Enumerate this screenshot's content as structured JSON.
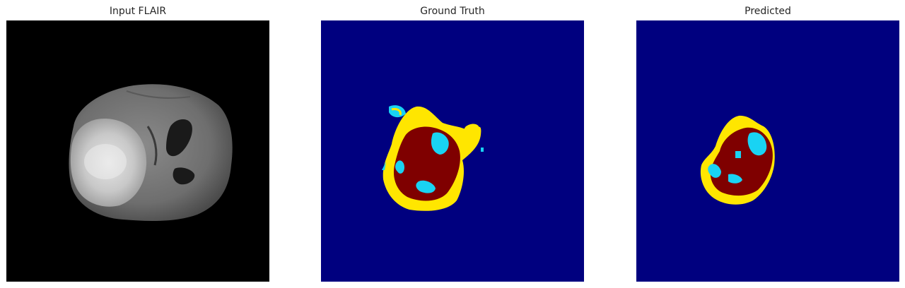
{
  "panels": [
    {
      "title": "Input FLAIR"
    },
    {
      "title": "Ground Truth"
    },
    {
      "title": "Predicted"
    }
  ],
  "colors": {
    "background_mask": "#00007f",
    "necrotic_core": "#7f0000",
    "edema": "#ffe600",
    "enhancing_tumor": "#19d3f3",
    "scan_background": "#000000"
  }
}
